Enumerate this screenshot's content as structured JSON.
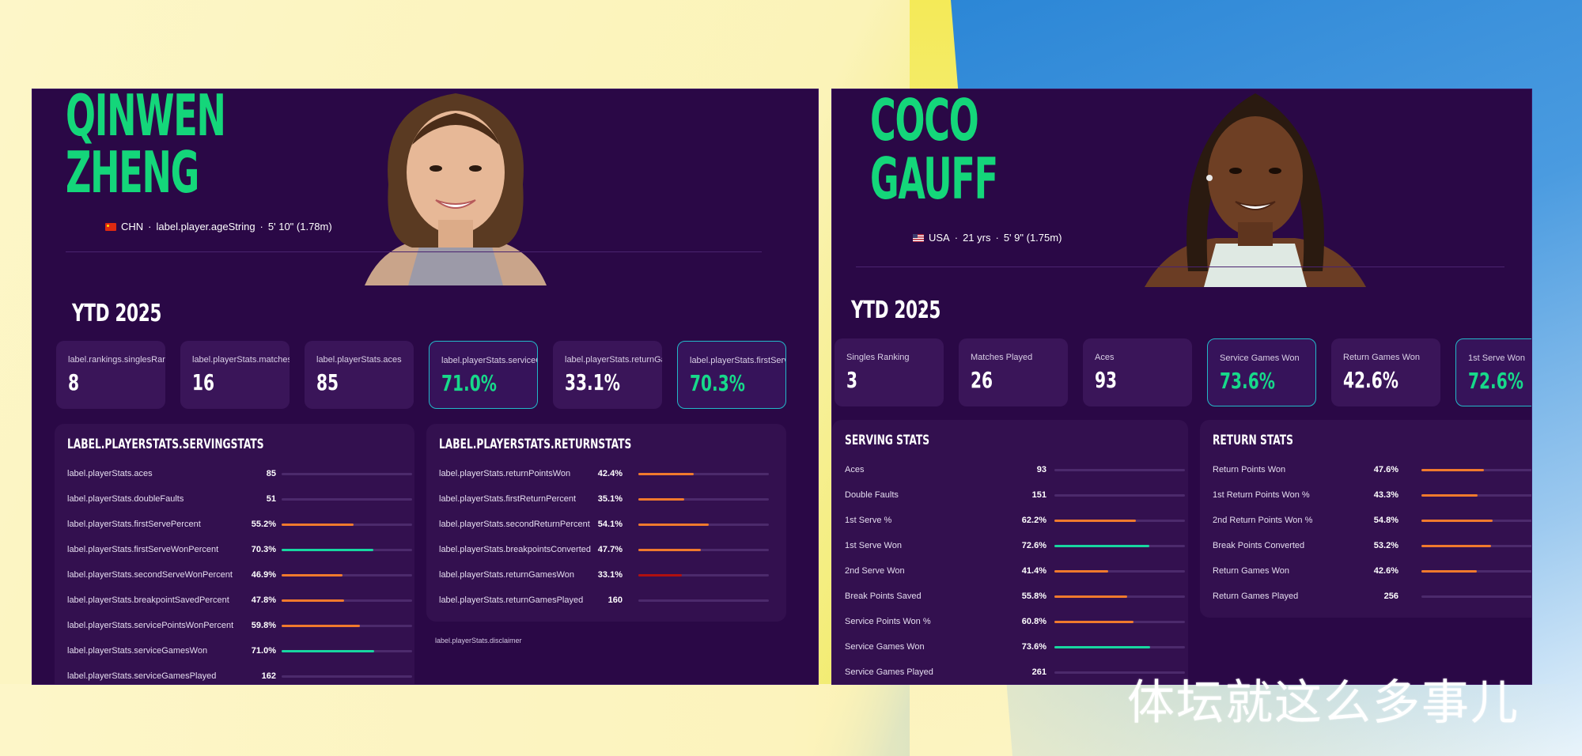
{
  "left": {
    "first_name": "QINWEN",
    "last_name": "ZHENG",
    "meta": {
      "country": "CHN",
      "age": "label.player.ageString",
      "height": "5' 10\" (1.78m)"
    },
    "ytd_label": "YTD 2025",
    "stat_cards": [
      {
        "label": "label.rankings.singlesRanking",
        "value": "8",
        "highlight": false
      },
      {
        "label": "label.playerStats.matchesPlayed",
        "value": "16",
        "highlight": false
      },
      {
        "label": "label.playerStats.aces",
        "value": "85",
        "highlight": false
      },
      {
        "label": "label.playerStats.serviceGamesWon",
        "value": "71.0%",
        "highlight": true
      },
      {
        "label": "label.playerStats.returnGamesWon",
        "value": "33.1%",
        "highlight": false
      },
      {
        "label": "label.playerStats.firstServeWonPercent",
        "value": "70.3%",
        "highlight": true
      }
    ],
    "serving": {
      "title": "LABEL.PLAYERSTATS.SERVINGSTATS",
      "rows": [
        {
          "label": "label.playerStats.aces",
          "value": "85",
          "fill": 0.0,
          "color": "orange"
        },
        {
          "label": "label.playerStats.doubleFaults",
          "value": "51",
          "fill": 0.0,
          "color": "orange"
        },
        {
          "label": "label.playerStats.firstServePercent",
          "value": "55.2%",
          "fill": 0.552,
          "color": "orange"
        },
        {
          "label": "label.playerStats.firstServeWonPercent",
          "value": "70.3%",
          "fill": 0.703,
          "color": "green"
        },
        {
          "label": "label.playerStats.secondServeWonPercent",
          "value": "46.9%",
          "fill": 0.469,
          "color": "orange"
        },
        {
          "label": "label.playerStats.breakpointSavedPercent",
          "value": "47.8%",
          "fill": 0.478,
          "color": "orange"
        },
        {
          "label": "label.playerStats.servicePointsWonPercent",
          "value": "59.8%",
          "fill": 0.598,
          "color": "orange"
        },
        {
          "label": "label.playerStats.serviceGamesWon",
          "value": "71.0%",
          "fill": 0.71,
          "color": "green"
        },
        {
          "label": "label.playerStats.serviceGamesPlayed",
          "value": "162",
          "fill": 0.0,
          "color": "orange"
        }
      ]
    },
    "returning": {
      "title": "LABEL.PLAYERSTATS.RETURNSTATS",
      "rows": [
        {
          "label": "label.playerStats.returnPointsWon",
          "value": "42.4%",
          "fill": 0.424,
          "color": "orange"
        },
        {
          "label": "label.playerStats.firstReturnPercent",
          "value": "35.1%",
          "fill": 0.351,
          "color": "orange"
        },
        {
          "label": "label.playerStats.secondReturnPercent",
          "value": "54.1%",
          "fill": 0.541,
          "color": "orange"
        },
        {
          "label": "label.playerStats.breakpointsConverted",
          "value": "47.7%",
          "fill": 0.477,
          "color": "orange"
        },
        {
          "label": "label.playerStats.returnGamesWon",
          "value": "33.1%",
          "fill": 0.331,
          "color": "red"
        },
        {
          "label": "label.playerStats.returnGamesPlayed",
          "value": "160",
          "fill": 0.0,
          "color": "orange"
        }
      ]
    },
    "disclaimer": "label.playerStats.disclaimer"
  },
  "right": {
    "first_name": "COCO",
    "last_name": "GAUFF",
    "meta": {
      "country": "USA",
      "age": "21 yrs",
      "height": "5' 9\" (1.75m)"
    },
    "ytd_label": "YTD 2025",
    "stat_cards": [
      {
        "label": "Singles Ranking",
        "value": "3",
        "highlight": false
      },
      {
        "label": "Matches Played",
        "value": "26",
        "highlight": false
      },
      {
        "label": "Aces",
        "value": "93",
        "highlight": false
      },
      {
        "label": "Service Games Won",
        "value": "73.6%",
        "highlight": true
      },
      {
        "label": "Return Games Won",
        "value": "42.6%",
        "highlight": false
      },
      {
        "label": "1st Serve Won",
        "value": "72.6%",
        "highlight": true
      }
    ],
    "serving": {
      "title": "SERVING STATS",
      "rows": [
        {
          "label": "Aces",
          "value": "93",
          "fill": 0.0,
          "color": "orange"
        },
        {
          "label": "Double Faults",
          "value": "151",
          "fill": 0.0,
          "color": "orange"
        },
        {
          "label": "1st Serve %",
          "value": "62.2%",
          "fill": 0.622,
          "color": "orange"
        },
        {
          "label": "1st Serve Won",
          "value": "72.6%",
          "fill": 0.726,
          "color": "green"
        },
        {
          "label": "2nd Serve Won",
          "value": "41.4%",
          "fill": 0.414,
          "color": "orange"
        },
        {
          "label": "Break Points Saved",
          "value": "55.8%",
          "fill": 0.558,
          "color": "orange"
        },
        {
          "label": "Service Points Won %",
          "value": "60.8%",
          "fill": 0.608,
          "color": "orange"
        },
        {
          "label": "Service Games Won",
          "value": "73.6%",
          "fill": 0.736,
          "color": "green"
        },
        {
          "label": "Service Games Played",
          "value": "261",
          "fill": 0.0,
          "color": "orange"
        }
      ]
    },
    "returning": {
      "title": "RETURN STATS",
      "rows": [
        {
          "label": "Return Points Won",
          "value": "47.6%",
          "fill": 0.476,
          "color": "orange"
        },
        {
          "label": "1st Return Points Won %",
          "value": "43.3%",
          "fill": 0.433,
          "color": "orange"
        },
        {
          "label": "2nd Return Points Won %",
          "value": "54.8%",
          "fill": 0.548,
          "color": "orange"
        },
        {
          "label": "Break Points Converted",
          "value": "53.2%",
          "fill": 0.532,
          "color": "orange"
        },
        {
          "label": "Return Games Won",
          "value": "42.6%",
          "fill": 0.426,
          "color": "orange"
        },
        {
          "label": "Return Games Played",
          "value": "256",
          "fill": 0.0,
          "color": "orange"
        }
      ]
    }
  },
  "watermark": "体坛就这么多事儿",
  "colors": {
    "accent_green": "#14d67a",
    "panel_bg": "#2a0846",
    "card_bg": "#3a1559",
    "bar_orange": "#f07a2d",
    "bar_green": "#18d6a0",
    "bar_red": "#b01010"
  }
}
